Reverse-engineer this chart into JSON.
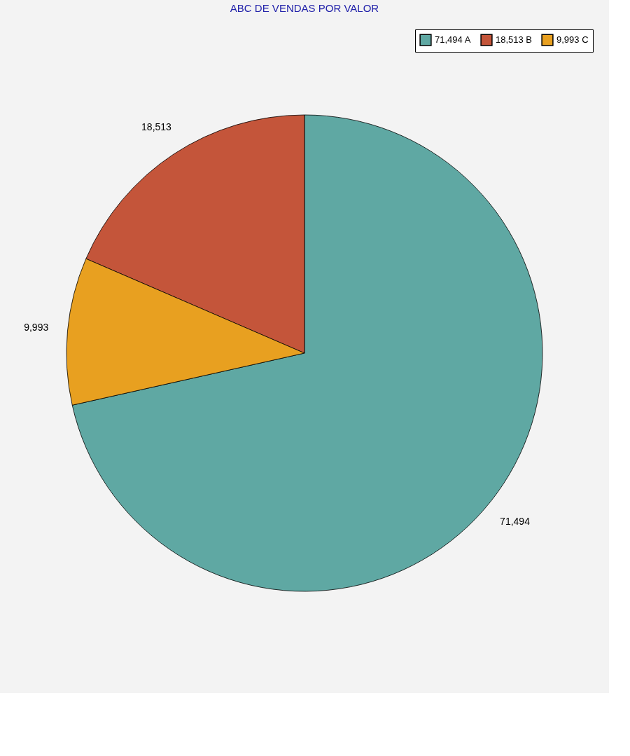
{
  "chart_data": {
    "type": "pie",
    "title": "ABC DE VENDAS POR VALOR",
    "categories": [
      "71,494 A",
      "18,513 B",
      "9,993 C"
    ],
    "values": [
      71494,
      18513,
      9993
    ],
    "value_labels": [
      "71,494",
      "18,513",
      "9,993"
    ],
    "colors": [
      "#5fa8a3",
      "#c4553a",
      "#e8a020"
    ],
    "legend": "top right"
  }
}
